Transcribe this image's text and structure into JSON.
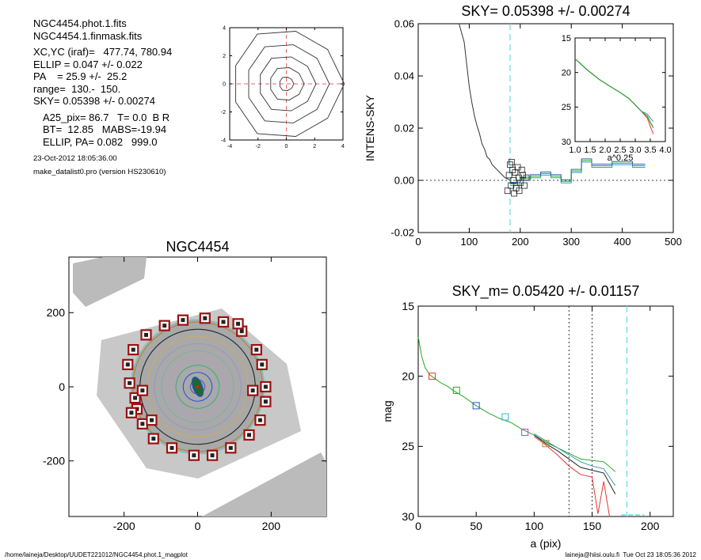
{
  "info": {
    "line1": "NGC4454.phot.1.fits",
    "line2": "NGC4454.1.finmask.fits",
    "line3": "XC,YC (iraf)=   477.74, 780.94",
    "line4": "ELLIP = 0.047 +/- 0.022",
    "line5": "PA    = 25.9 +/-  25.2",
    "line6": "range=  130.-  150.",
    "line7": "SKY= 0.05398 +/- 0.00274",
    "line8": "A25_pix= 86.7   T= 0.0  B R",
    "line9": "BT=  12.85   MABS=-19.94",
    "line10": "ELLIP, PA= 0.082   999.0",
    "date": "23-Oct-2012 18:05:36.00",
    "program": "make_datalist0.pro (version HS230610)"
  },
  "footer": {
    "path": "/home/laineja/Desktop/UUDET221012/NGC4454.phot.1_magplot",
    "user": "laineja@hiisi.oulu.fi  Tue Oct 23 18:05:36 2012"
  },
  "chart_data": [
    {
      "id": "contour",
      "type": "line",
      "xlim": [
        -4,
        4
      ],
      "ylim": [
        -4,
        4
      ],
      "x_ticks": [
        "-4",
        "-2",
        "0",
        "2",
        "4"
      ],
      "y_ticks": [
        "-4",
        "-2",
        "0",
        "2",
        "4"
      ],
      "contour_radii": [
        0.5,
        1.2,
        2.0,
        2.9,
        3.9
      ]
    },
    {
      "id": "sky",
      "type": "line",
      "title": "SKY= 0.05398 +/- 0.00274",
      "xlabel": "",
      "ylabel": "INTENS-SKY",
      "xlim": [
        0,
        500
      ],
      "ylim": [
        -0.02,
        0.06
      ],
      "x_ticks": [
        "0",
        "100",
        "200",
        "300",
        "400",
        "500"
      ],
      "y_ticks": [
        "-0.02",
        "0.00",
        "0.02",
        "0.04",
        "0.06"
      ],
      "sky_marker_x": 180,
      "profile_x": [
        80,
        90,
        100,
        105,
        110,
        115,
        120,
        125,
        130,
        135,
        140,
        145,
        150,
        155,
        160,
        165,
        170,
        175,
        180
      ],
      "profile_y": [
        0.06,
        0.053,
        0.036,
        0.03,
        0.025,
        0.021,
        0.018,
        0.014,
        0.012,
        0.009,
        0.008,
        0.006,
        0.005,
        0.004,
        0.003,
        0.002,
        0.001,
        0.0006,
        0.0
      ],
      "step_x": [
        180,
        200,
        220,
        240,
        260,
        280,
        300,
        320,
        340,
        380,
        420,
        445
      ],
      "step_y": [
        -0.002,
        0.0,
        0.001,
        0.002,
        0.001,
        -0.001,
        0.003,
        0.007,
        0.005,
        0.006,
        0.005,
        0.005
      ],
      "boxes": [
        [
          175,
          -0.004
        ],
        [
          178,
          0.002
        ],
        [
          180,
          0.006
        ],
        [
          182,
          -0.002
        ],
        [
          185,
          0.004
        ],
        [
          187,
          0.0
        ],
        [
          190,
          0.003
        ],
        [
          192,
          -0.003
        ],
        [
          195,
          0.005
        ],
        [
          197,
          0.001
        ],
        [
          200,
          -0.001
        ],
        [
          203,
          0.004
        ],
        [
          205,
          0.002
        ],
        [
          208,
          -0.002
        ],
        [
          212,
          0.001
        ],
        [
          183,
          0.007
        ],
        [
          188,
          -0.005
        ],
        [
          198,
          -0.004
        ]
      ],
      "inset": {
        "xlabel": "a^0.25",
        "xlim": [
          1.0,
          4.0
        ],
        "ylim": [
          15,
          30
        ],
        "x_ticks": [
          "1.0",
          "1.5",
          "2.0",
          "2.5",
          "3.0",
          "3.5",
          "4.0"
        ],
        "y_ticks": [
          "15",
          "20",
          "25",
          "30"
        ],
        "x": [
          1.0,
          1.4,
          1.8,
          2.2,
          2.5,
          2.8,
          3.0,
          3.2,
          3.4,
          3.5,
          3.6
        ],
        "y": [
          18.0,
          19.6,
          21.0,
          22.1,
          22.9,
          23.8,
          24.7,
          25.6,
          26.3,
          27.2,
          28.0
        ]
      }
    },
    {
      "id": "image",
      "type": "scatter",
      "title": "NGC4454",
      "xlim": [
        -350,
        350
      ],
      "ylim": [
        -350,
        350
      ],
      "x_ticks": [
        "-200",
        "0",
        "200"
      ],
      "y_ticks": [
        "-200",
        "0",
        "200"
      ],
      "ellipse_radii": [
        180,
        160,
        140,
        120,
        100,
        80,
        60,
        40,
        20
      ],
      "ellipse_colors": [
        "#aa8833",
        "#222222",
        "#ccaa66",
        "#9999bb",
        "#88aaaa",
        "#bb99cc",
        "#44aa88",
        "#2255dd",
        "#5555bb"
      ],
      "sky_boxes": [
        [
          -190,
          60
        ],
        [
          -185,
          10
        ],
        [
          -170,
          -30
        ],
        [
          -165,
          -60
        ],
        [
          -150,
          -100
        ],
        [
          -120,
          -140
        ],
        [
          -70,
          -165
        ],
        [
          -10,
          -185
        ],
        [
          40,
          -185
        ],
        [
          90,
          -165
        ],
        [
          140,
          -130
        ],
        [
          170,
          -90
        ],
        [
          185,
          -40
        ],
        [
          185,
          0
        ],
        [
          175,
          60
        ],
        [
          160,
          100
        ],
        [
          120,
          150
        ],
        [
          70,
          175
        ],
        [
          20,
          185
        ],
        [
          -40,
          180
        ],
        [
          -90,
          165
        ],
        [
          -140,
          140
        ],
        [
          -175,
          100
        ],
        [
          -150,
          -10
        ],
        [
          -125,
          -90
        ],
        [
          150,
          -10
        ],
        [
          -180,
          -70
        ],
        [
          110,
          170
        ]
      ]
    },
    {
      "id": "mag",
      "type": "line",
      "title": "SKY_m=  0.05420 +/- 0.01157",
      "xlabel": "a (pix)",
      "ylabel": "mag",
      "xlim": [
        0,
        220
      ],
      "ylim": [
        15,
        30
      ],
      "x_ticks": [
        "0",
        "50",
        "100",
        "150",
        "200"
      ],
      "y_ticks": [
        "15",
        "20",
        "25",
        "30"
      ],
      "range_lines": [
        130,
        150
      ],
      "sky_marker_x": 180,
      "series": [
        {
          "color": "#22aa22",
          "x": [
            0,
            3,
            6,
            10,
            15,
            20,
            25,
            30,
            40,
            50,
            60,
            70,
            80,
            90,
            100,
            110,
            120,
            130,
            140,
            150,
            160,
            170
          ],
          "y": [
            17.2,
            18.6,
            19.4,
            19.9,
            20.2,
            20.5,
            20.7,
            21.0,
            21.5,
            22.1,
            22.6,
            23.0,
            23.3,
            23.8,
            24.2,
            24.7,
            25.1,
            25.5,
            25.9,
            26.0,
            26.1,
            26.8
          ]
        },
        {
          "color": "#ee3333",
          "x": [
            100,
            110,
            120,
            130,
            140,
            150,
            155,
            160,
            165
          ],
          "y": [
            24.3,
            24.9,
            25.6,
            26.4,
            27.0,
            27.2,
            29.8,
            27.5,
            30.0
          ]
        },
        {
          "color": "#222222",
          "x": [
            100,
            110,
            120,
            130,
            140,
            150,
            160,
            170
          ],
          "y": [
            24.2,
            24.8,
            25.3,
            25.9,
            26.5,
            26.7,
            26.9,
            28.4
          ]
        },
        {
          "color": "#3399aa",
          "x": [
            100,
            110,
            120,
            130,
            140,
            150,
            160,
            170
          ],
          "y": [
            24.1,
            24.6,
            25.1,
            25.6,
            26.1,
            26.4,
            26.6,
            27.8
          ]
        }
      ],
      "markers": [
        [
          12,
          20.0,
          "#ee3333"
        ],
        [
          33,
          21.0,
          "#22aa22"
        ],
        [
          50,
          22.1,
          "#2255dd"
        ],
        [
          75,
          22.9,
          "#33bbdd"
        ],
        [
          92,
          24.0,
          "#cc33cc"
        ],
        [
          110,
          24.8,
          "#aa8833"
        ]
      ],
      "sky_level": [
        [
          175,
          30.0
        ],
        [
          195,
          30.0
        ]
      ]
    }
  ]
}
